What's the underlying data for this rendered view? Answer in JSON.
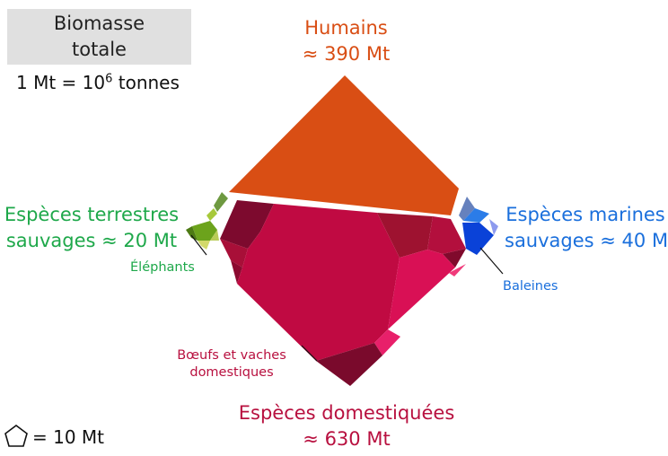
{
  "title": {
    "line1": "Biomasse",
    "line2": "totale"
  },
  "unit": {
    "prefix": "1 Mt = 10",
    "exp": "6",
    "suffix": " tonnes"
  },
  "groups": {
    "humans": {
      "name": "Humains",
      "value": "≈ 390 Mt",
      "color": "#d94e14"
    },
    "terrestrial": {
      "line1": "Espèces terrestres",
      "line2": "sauvages ≈ 20 Mt",
      "color": "#1ea84a"
    },
    "marine": {
      "line1": "Espèces marines",
      "line2": "sauvages ≈ 40 Mt",
      "color": "#1a6fdc"
    },
    "domestic": {
      "name": "Espèces domestiquées",
      "value": "≈ 630 Mt",
      "color": "#b8103f"
    }
  },
  "callouts": {
    "elephants": "Éléphants",
    "whales": "Baleines",
    "cattle_line1": "Bœufs et vaches",
    "cattle_line2": "domestiques"
  },
  "legend": {
    "label": "= 10 Mt",
    "icon": "pentagon-icon"
  }
}
